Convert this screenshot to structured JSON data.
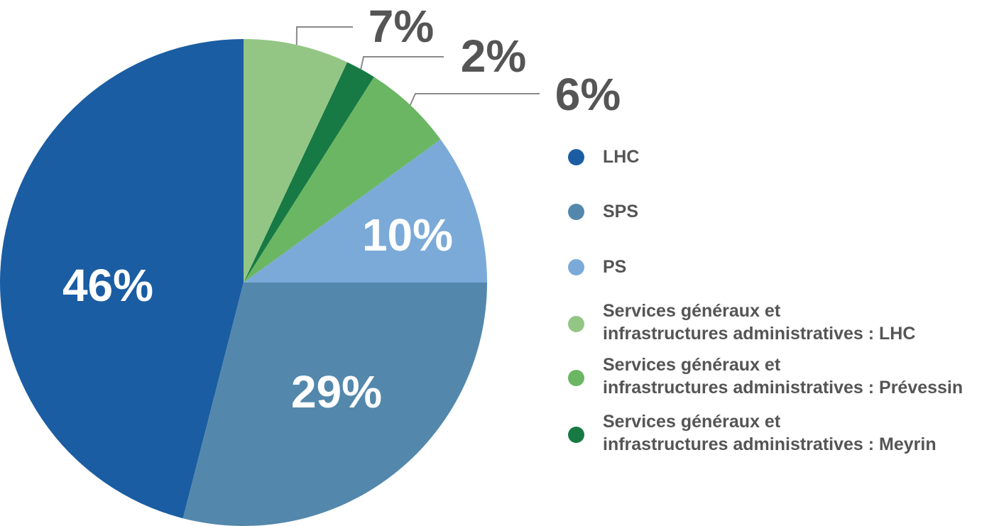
{
  "chart_data": {
    "type": "pie",
    "slices": [
      {
        "name": "LHC",
        "value": 46,
        "label": "46%",
        "color": "#1b5da2"
      },
      {
        "name": "SPS",
        "value": 29,
        "label": "29%",
        "color": "#5388ac"
      },
      {
        "name": "PS",
        "value": 10,
        "label": "10%",
        "color": "#7baad8"
      },
      {
        "name": "Services généraux et\ninfrastructures administratives : Prévessin",
        "value": 6,
        "label": "6%",
        "color": "#6bb663"
      },
      {
        "name": "Services généraux et\ninfrastructures administratives : Meyrin",
        "value": 2,
        "label": "2%",
        "color": "#177a44"
      },
      {
        "name": "Services généraux et\ninfrastructures administratives : LHC",
        "value": 7,
        "label": "7%",
        "color": "#93c685"
      }
    ],
    "legend": [
      {
        "name": "LHC",
        "color": "#1b5da2"
      },
      {
        "name": "SPS",
        "color": "#5388ac"
      },
      {
        "name": "PS",
        "color": "#7baad8"
      },
      {
        "name": "Services généraux et\ninfrastructures administratives : LHC",
        "color": "#93c685"
      },
      {
        "name": "Services généraux et\ninfrastructures administratives : Prévessin",
        "color": "#6bb663"
      },
      {
        "name": "Services généraux et\ninfrastructures administratives : Meyrin",
        "color": "#177a44"
      }
    ],
    "legend_position": "right"
  }
}
